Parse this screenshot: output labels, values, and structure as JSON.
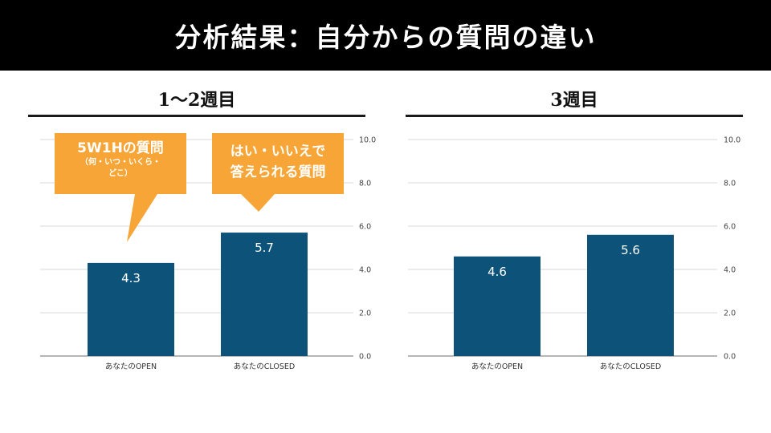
{
  "header": {
    "title": "分析結果：自分からの質問の違い"
  },
  "panels": [
    {
      "title": "1〜2週目"
    },
    {
      "title": "3週目"
    }
  ],
  "callouts": {
    "open": {
      "heading": "5W1Hの質問",
      "sub_line1": "（何・いつ・いくら・",
      "sub_line2": "どこ）"
    },
    "closed": {
      "line1": "はい・いいえで",
      "line2": "答えられる質問"
    }
  },
  "colors": {
    "bar": "#0d5278",
    "callout": "#f6a536",
    "grid": "#d9d9d9",
    "axis": "#9e9e9e"
  },
  "chart_data": [
    {
      "type": "bar",
      "categories": [
        "あなたのOPEN",
        "あなたのCLOSED"
      ],
      "values": [
        4.3,
        5.7
      ],
      "value_labels": [
        "4.3",
        "5.7"
      ],
      "ylim": [
        0,
        10
      ],
      "yticks": [
        "0.0",
        "2.0",
        "4.0",
        "6.0",
        "8.0",
        "10.0"
      ],
      "grid": true,
      "y_axis_side": "right"
    },
    {
      "type": "bar",
      "categories": [
        "あなたのOPEN",
        "あなたのCLOSED"
      ],
      "values": [
        4.6,
        5.6
      ],
      "value_labels": [
        "4.6",
        "5.6"
      ],
      "ylim": [
        0,
        10
      ],
      "yticks": [
        "0.0",
        "2.0",
        "4.0",
        "6.0",
        "8.0",
        "10.0"
      ],
      "grid": true,
      "y_axis_side": "right"
    }
  ]
}
